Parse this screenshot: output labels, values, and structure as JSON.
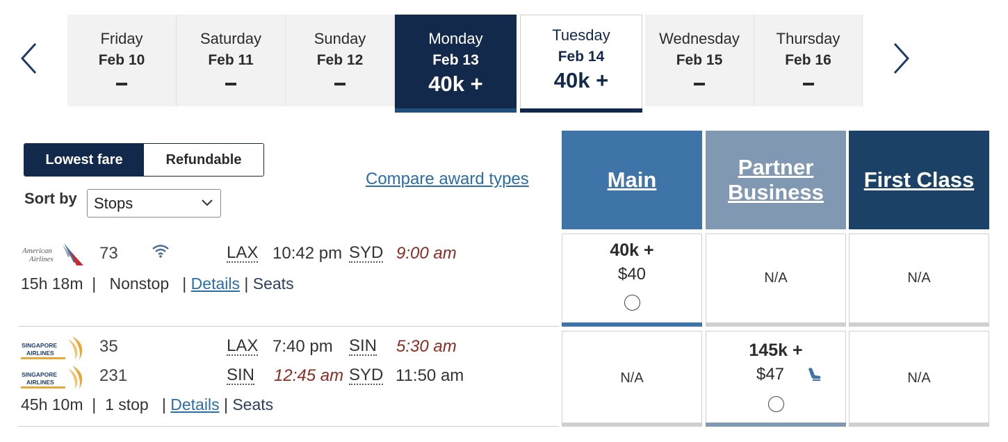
{
  "date_nav": {
    "tabs": [
      {
        "day": "Friday",
        "date": "Feb 10",
        "price": ""
      },
      {
        "day": "Saturday",
        "date": "Feb 11",
        "price": ""
      },
      {
        "day": "Sunday",
        "date": "Feb 12",
        "price": ""
      },
      {
        "day": "Monday",
        "date": "Feb 13",
        "price": "40k +"
      },
      {
        "day": "Tuesday",
        "date": "Feb 14",
        "price": "40k +"
      },
      {
        "day": "Wednesday",
        "date": "Feb 15",
        "price": ""
      },
      {
        "day": "Thursday",
        "date": "Feb 16",
        "price": ""
      }
    ]
  },
  "filters": {
    "lowest_fare_label": "Lowest fare",
    "refundable_label": "Refundable",
    "sort_label": "Sort by",
    "sort_value": "Stops",
    "compare_link": "Compare award types"
  },
  "cabins": {
    "main": "Main",
    "partner_line1": "Partner",
    "partner_line2": "Business",
    "first": "First Class"
  },
  "flights": [
    {
      "segments": [
        {
          "airline": "American Airlines",
          "flight": "73",
          "from": "LAX",
          "depart": "10:42 pm",
          "to": "SYD",
          "arrive": "9:00 am"
        }
      ],
      "duration": "15h 18m",
      "stops": "Nonstop",
      "details": "Details",
      "seats": "Seats",
      "fares": {
        "main": {
          "points": "40k +",
          "tax": "$40"
        },
        "partner": "N/A",
        "first": "N/A"
      }
    },
    {
      "segments": [
        {
          "airline": "Singapore Airlines",
          "flight": "35",
          "from": "LAX",
          "depart": "7:40 pm",
          "to": "SIN",
          "arrive": "5:30 am"
        },
        {
          "airline": "Singapore Airlines",
          "flight": "231",
          "from": "SIN",
          "depart": "12:45 am",
          "to": "SYD",
          "arrive": "11:50 am"
        }
      ],
      "duration": "45h 10m",
      "stops": "1 stop",
      "details": "Details",
      "seats": "Seats",
      "fares": {
        "main": "N/A",
        "partner": {
          "points": "145k +",
          "tax": "$47"
        },
        "first": "N/A"
      }
    }
  ],
  "icons": {
    "prev": "chevron-left-icon",
    "next": "chevron-right-icon",
    "wifi": "wifi-icon",
    "seat": "lie-flat-seat-icon"
  },
  "colors": {
    "navy": "#13294b",
    "main": "#3f74a8",
    "partner": "#8198b3",
    "first": "#1b4266",
    "link": "#2a6ea8",
    "late_arrival": "#8b2c22"
  }
}
